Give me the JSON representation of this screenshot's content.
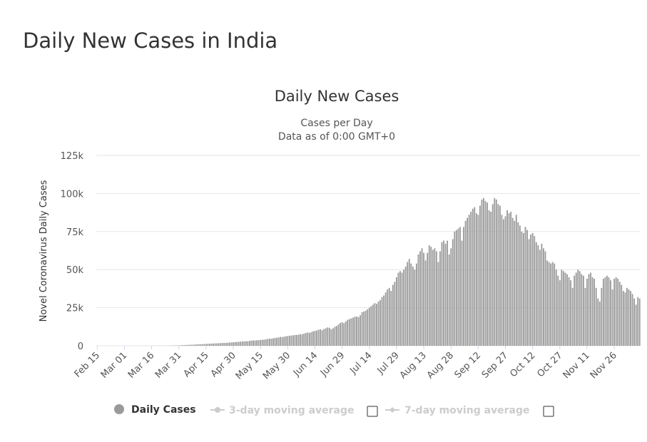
{
  "page": {
    "title": "Daily New Cases in India"
  },
  "chart_data": {
    "type": "bar",
    "title": "Daily New Cases",
    "subtitle_line1": "Cases per Day",
    "subtitle_line2": "Data as of 0:00 GMT+0",
    "ylabel": "Novel Coronavirus Daily Cases",
    "xlabel": "",
    "ylim": [
      0,
      125000
    ],
    "y_ticks": [
      {
        "value": 0,
        "label": "0"
      },
      {
        "value": 25000,
        "label": "25k"
      },
      {
        "value": 50000,
        "label": "50k"
      },
      {
        "value": 75000,
        "label": "75k"
      },
      {
        "value": 100000,
        "label": "100k"
      },
      {
        "value": 125000,
        "label": "125k"
      }
    ],
    "x_ticks": [
      "Feb 15",
      "Mar 01",
      "Mar 16",
      "Mar 31",
      "Apr 15",
      "Apr 30",
      "May 15",
      "May 30",
      "Jun 14",
      "Jun 29",
      "Jul 14",
      "Jul 29",
      "Aug 13",
      "Aug 28",
      "Sep 12",
      "Sep 27",
      "Oct 12",
      "Oct 27",
      "Nov 11",
      "Nov 26"
    ],
    "series": [
      {
        "name": "Daily Cases",
        "start_date": "Feb 15",
        "values": [
          0,
          0,
          0,
          0,
          0,
          0,
          0,
          0,
          0,
          0,
          0,
          0,
          0,
          0,
          0,
          0,
          3,
          0,
          1,
          2,
          5,
          3,
          5,
          6,
          7,
          8,
          11,
          12,
          15,
          14,
          19,
          25,
          30,
          35,
          40,
          50,
          65,
          70,
          85,
          100,
          120,
          150,
          180,
          190,
          200,
          250,
          300,
          400,
          450,
          500,
          550,
          600,
          650,
          700,
          800,
          900,
          950,
          1000,
          1050,
          1100,
          1200,
          1300,
          1350,
          1400,
          1500,
          1550,
          1600,
          1650,
          1750,
          1800,
          1850,
          1900,
          2000,
          2100,
          2200,
          2300,
          2400,
          2500,
          2600,
          2700,
          2800,
          2900,
          3000,
          2900,
          3200,
          3400,
          3500,
          3400,
          3600,
          3700,
          3800,
          3900,
          4000,
          4200,
          4500,
          4700,
          4600,
          4900,
          5100,
          5300,
          5500,
          5800,
          5600,
          6000,
          6200,
          6400,
          6600,
          6700,
          6900,
          7000,
          7100,
          7300,
          7600,
          7500,
          8000,
          8400,
          8700,
          8500,
          9000,
          9500,
          9700,
          10000,
          10500,
          10800,
          10200,
          11000,
          11500,
          12000,
          11800,
          10800,
          11500,
          12500,
          13000,
          14000,
          15000,
          15500,
          14800,
          16000,
          17000,
          17500,
          18000,
          18500,
          19000,
          19200,
          18800,
          20000,
          22000,
          22500,
          23000,
          24000,
          25000,
          26000,
          27000,
          28000,
          27500,
          29000,
          30000,
          32000,
          33000,
          35000,
          37000,
          38000,
          36000,
          40000,
          42000,
          45000,
          48000,
          49000,
          48000,
          50000,
          52000,
          55000,
          57000,
          54000,
          52000,
          50000,
          54000,
          60000,
          62000,
          64000,
          61000,
          56000,
          61000,
          66000,
          65000,
          63000,
          64000,
          62000,
          55000,
          62000,
          68000,
          69000,
          67000,
          69000,
          60000,
          64000,
          70000,
          75000,
          76000,
          77000,
          78000,
          69000,
          78000,
          82000,
          84000,
          86000,
          88000,
          90000,
          91000,
          87000,
          86000,
          92000,
          96000,
          97000,
          95000,
          94000,
          89000,
          88000,
          93000,
          97000,
          96000,
          93000,
          92000,
          86000,
          83000,
          85000,
          89000,
          87000,
          88000,
          84000,
          82000,
          86000,
          81000,
          79000,
          75000,
          74000,
          78000,
          76000,
          70000,
          73000,
          74000,
          72000,
          68000,
          66000,
          63000,
          67000,
          64000,
          62000,
          56000,
          55000,
          54000,
          55000,
          54000,
          50000,
          46000,
          43000,
          50000,
          49000,
          48000,
          47000,
          45000,
          43000,
          38000,
          46000,
          48000,
          50000,
          49000,
          47000,
          46000,
          38000,
          44000,
          47000,
          48000,
          45000,
          44000,
          38000,
          31000,
          29000,
          38000,
          44000,
          45000,
          46000,
          45000,
          43000,
          37000,
          44000,
          45000,
          44000,
          42000,
          40000,
          36000,
          35000,
          38000,
          37000,
          36000,
          34000,
          31000,
          27000,
          32000,
          31000
        ]
      }
    ],
    "legend": [
      {
        "label": "Daily Cases",
        "active": true
      },
      {
        "label": "3-day moving average",
        "active": false
      },
      {
        "label": "7-day moving average",
        "active": false
      }
    ]
  },
  "colors": {
    "bar": "#9a9a9a",
    "grid": "#e6e6e6",
    "inactive": "#cccccc"
  }
}
